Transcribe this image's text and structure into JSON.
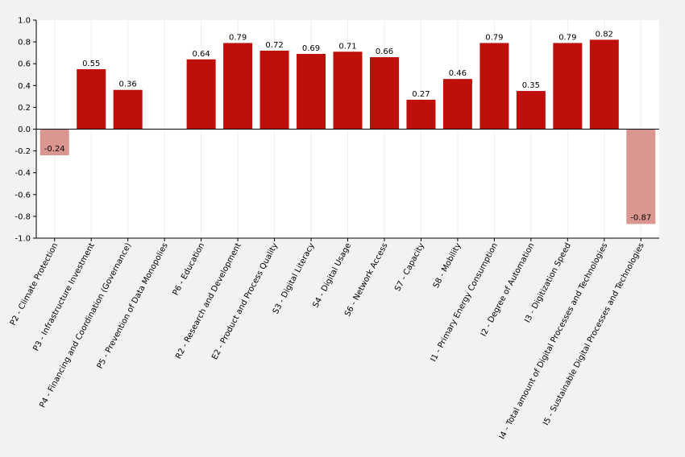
{
  "colors": {
    "background": "#f2f2f2",
    "plot_background": "#ffffff",
    "positive_bar": "#bf0f0a",
    "negative_bar": "#dc9690",
    "gridline": "#eeeeee",
    "axis": "#000000"
  },
  "chart_data": {
    "type": "bar",
    "title": "",
    "xlabel": "",
    "ylabel": "",
    "ylim": [
      -1.0,
      1.0
    ],
    "yticks": [
      "-1.0",
      "-0.8",
      "-0.6",
      "-0.4",
      "-0.2",
      "0.0",
      "0.2",
      "0.4",
      "0.6",
      "0.8",
      "1.0"
    ],
    "grid": "vertical",
    "categories": [
      "P2 - Climate Protection",
      "P3 - Infrastructure Investment",
      "P4 - Financing and Coordination (Governance)",
      "P5 - Prevention of Data Monopolies",
      "P6 - Education",
      "R2 - Research and Development",
      "E2 - Product and Process Quality",
      "S3 - Digital Literacy",
      "S4 - Digital Usage",
      "S6 - Network Access",
      "S7 - Capacity",
      "S8 - Mobility",
      "I1 - Primary Energy Consumption",
      "I2 - Degree of Automation",
      "I3 - Digitization Speed",
      "I4 - Total amount of Digital Processes and Technologies",
      "I5 - Sustainable Digital Processes and Technologies"
    ],
    "values": [
      -0.24,
      0.55,
      0.36,
      null,
      0.64,
      0.79,
      0.72,
      0.69,
      0.71,
      0.66,
      0.27,
      0.46,
      0.79,
      0.35,
      0.79,
      0.82,
      -0.87
    ],
    "value_labels": [
      "-0.24",
      "0.55",
      "0.36",
      "",
      "0.64",
      "0.79",
      "0.72",
      "0.69",
      "0.71",
      "0.66",
      "0.27",
      "0.46",
      "0.79",
      "0.35",
      "0.79",
      "0.82",
      "-0.87"
    ]
  }
}
